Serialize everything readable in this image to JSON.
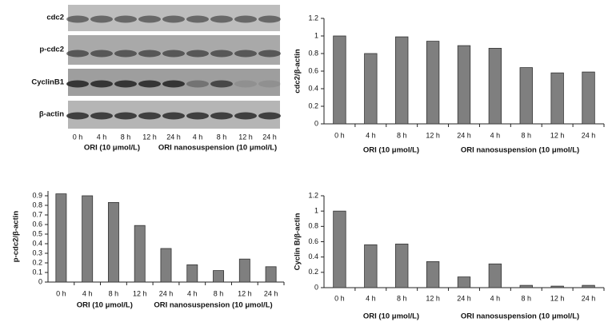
{
  "blot": {
    "rows": [
      "cdc2",
      "p-cdc2",
      "CyclinB1",
      "β-actin"
    ],
    "lanes": [
      "0 h",
      "4 h",
      "8 h",
      "12 h",
      "24 h",
      "4 h",
      "8 h",
      "12 h",
      "24 h"
    ],
    "groups": [
      "ORI (10 μmol/L)",
      "ORI nanosuspension (10 μmol/L)"
    ]
  },
  "chart_data": [
    {
      "type": "bar",
      "ylabel": "cdc2/β-actin",
      "categories": [
        "0 h",
        "4 h",
        "8 h",
        "12 h",
        "24 h",
        "4 h",
        "8 h",
        "12 h",
        "24 h"
      ],
      "groups": [
        "ORI (10 μmol/L)",
        "ORI nanosuspension (10 μmol/L)"
      ],
      "values": [
        1.0,
        0.8,
        0.99,
        0.94,
        0.89,
        0.86,
        0.64,
        0.58,
        0.59
      ],
      "color": "#7f7f7f",
      "ylim": [
        0,
        1.2
      ],
      "yticks": [
        0,
        0.2,
        0.4,
        0.6,
        0.8,
        1,
        1.2
      ]
    },
    {
      "type": "bar",
      "ylabel": "p-cdc2/β-actin",
      "categories": [
        "0 h",
        "4 h",
        "8 h",
        "12 h",
        "24 h",
        "4 h",
        "8 h",
        "12 h",
        "24 h"
      ],
      "groups": [
        "ORI (10 μmol/L)",
        "ORI nanosuspension (10 μmol/L)"
      ],
      "values": [
        0.92,
        0.9,
        0.83,
        0.59,
        0.35,
        0.18,
        0.12,
        0.24,
        0.16
      ],
      "color": "#7f7f7f",
      "ylim": [
        0,
        0.95
      ],
      "yticks": [
        0,
        0.1,
        0.2,
        0.3,
        0.4,
        0.5,
        0.6,
        0.7,
        0.8,
        0.9
      ]
    },
    {
      "type": "bar",
      "ylabel": "Cyclin B/β-actin",
      "categories": [
        "0 h",
        "4 h",
        "8 h",
        "12 h",
        "24 h",
        "4 h",
        "8 h",
        "12 h",
        "24 h"
      ],
      "groups": [
        "ORI (10 μmol/L)",
        "ORI nanosuspension (10 μmol/L)"
      ],
      "values": [
        1.0,
        0.56,
        0.57,
        0.34,
        0.14,
        0.31,
        0.03,
        0.02,
        0.03
      ],
      "color": "#7f7f7f",
      "ylim": [
        0,
        1.2
      ],
      "yticks": [
        0,
        0.2,
        0.4,
        0.6,
        0.8,
        1,
        1.2
      ]
    }
  ]
}
